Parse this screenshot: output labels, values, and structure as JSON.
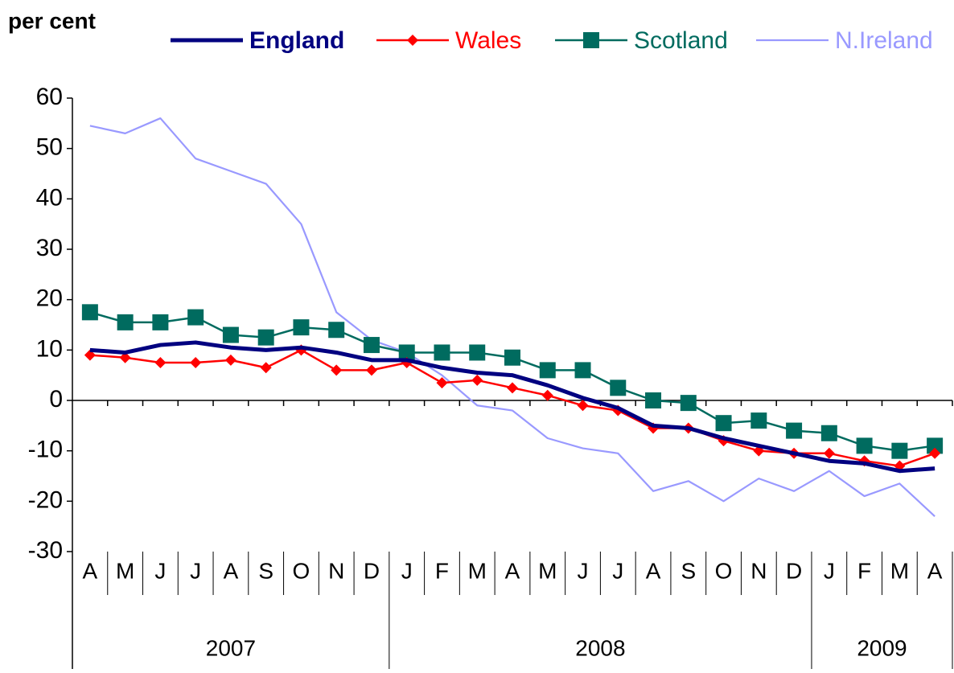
{
  "chart_data": {
    "type": "line",
    "y_label": "per cent",
    "groups": [
      {
        "label": "2007",
        "categories": [
          "A",
          "M",
          "J",
          "J",
          "A",
          "S",
          "O",
          "N",
          "D"
        ]
      },
      {
        "label": "2008",
        "categories": [
          "J",
          "F",
          "M",
          "A",
          "M",
          "J",
          "J",
          "A",
          "S",
          "O",
          "N",
          "D"
        ]
      },
      {
        "label": "2009",
        "categories": [
          "J",
          "F",
          "M",
          "A"
        ]
      }
    ],
    "series": [
      {
        "name": "England",
        "color": "#000080",
        "values": [
          10,
          9.5,
          11,
          11.5,
          10.5,
          10,
          10.5,
          9.5,
          8,
          8,
          6.5,
          5.5,
          5,
          3,
          0.5,
          -1.5,
          -5,
          -5.5,
          -7.5,
          -9,
          -10.5,
          -12,
          -12.5,
          -14,
          -13.5
        ]
      },
      {
        "name": "Wales",
        "color": "#ff0000",
        "marker": "diamond",
        "values": [
          9,
          8.5,
          7.5,
          7.5,
          8,
          6.5,
          10,
          6,
          6,
          7.5,
          3.5,
          4,
          2.5,
          1,
          -1,
          -2,
          -5.5,
          -5.5,
          -8,
          -10,
          -10.5,
          -10.5,
          -12,
          -13,
          -10.5
        ]
      },
      {
        "name": "Scotland",
        "color": "#006b5f",
        "marker": "square",
        "values": [
          17.5,
          15.5,
          15.5,
          16.5,
          13,
          12.5,
          14.5,
          14,
          11,
          9.5,
          9.5,
          9.5,
          8.5,
          6,
          6,
          2.5,
          0,
          -0.5,
          -4.5,
          -4,
          -6,
          -6.5,
          -9,
          -10,
          -9
        ]
      },
      {
        "name": "N.Ireland",
        "color": "#9999ff",
        "values": [
          54.5,
          53,
          56,
          48,
          45.5,
          43,
          35,
          17.5,
          12,
          9.5,
          5,
          -1,
          -2,
          -7.5,
          -9.5,
          -10.5,
          -18,
          -16,
          -20,
          -15.5,
          -18,
          -14,
          -19,
          -16.5,
          -23
        ]
      }
    ],
    "ylim": [
      -30,
      60
    ],
    "yticks": [
      60,
      50,
      40,
      30,
      20,
      10,
      0,
      -10,
      -20,
      -30
    ]
  }
}
